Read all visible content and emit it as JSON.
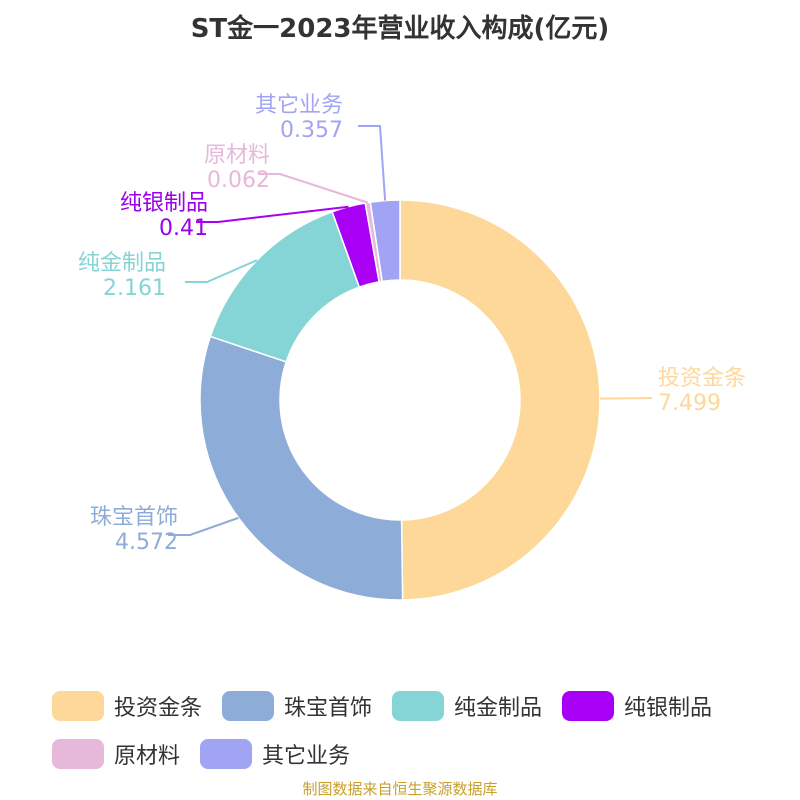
{
  "title": "ST金一2023年营业收入构成(亿元)",
  "source": "制图数据来自恒生聚源数据库",
  "chart_data": {
    "type": "pie",
    "variant": "donut",
    "title": "ST金一2023年营业收入构成(亿元)",
    "categories": [
      "投资金条",
      "珠宝首饰",
      "纯金制品",
      "纯银制品",
      "原材料",
      "其它业务"
    ],
    "values": [
      7.499,
      4.572,
      2.161,
      0.41,
      0.062,
      0.357
    ],
    "value_labels": [
      "7.499",
      "4.572",
      "2.161",
      "0.41",
      "0.062",
      "0.357"
    ],
    "colors": [
      "#FDD899",
      "#8DACD8",
      "#85D4D6",
      "#A700F5",
      "#E6B8D9",
      "#A1A4F2"
    ],
    "label_colors": [
      "#FDD899",
      "#8DACD8",
      "#85D4D6",
      "#9B00E8",
      "#E6B8D9",
      "#A1A4F2"
    ],
    "legend_position": "bottom"
  }
}
